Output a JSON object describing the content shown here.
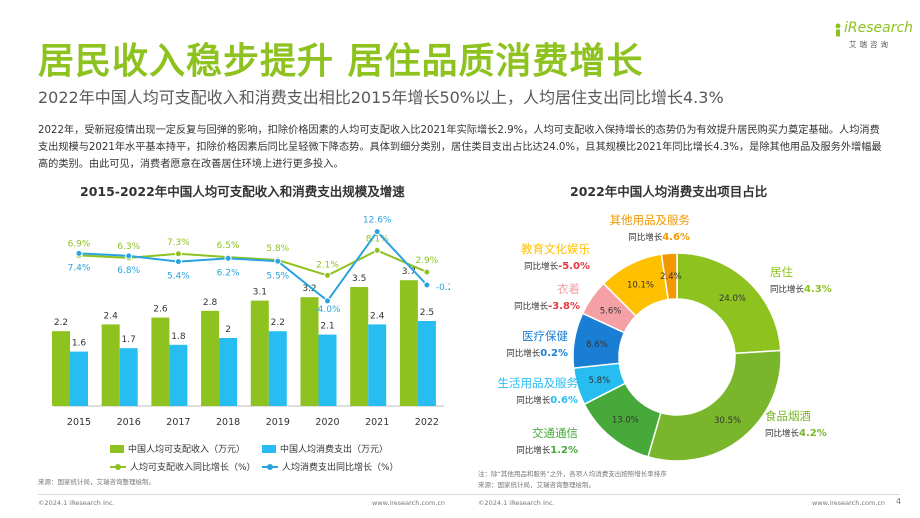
{
  "header": {
    "title": "居民收入稳步提升 居住品质消费增长",
    "subtitle": "2022年中国人均可支配收入和消费支出相比2015年增长50%以上，人均居住支出同比增长4.3%",
    "paragraph": "2022年，受新冠疫情出现一定反复与回弹的影响，扣除价格因素的人均可支配收入比2021年实际增长2.9%，人均可支配收入保持增长的态势仍为有效提升居民购买力奠定基础。人均消费支出规模与2021年水平基本持平，扣除价格因素后同比呈轻微下降态势。具体到细分类别，居住类目支出占比达24.0%，且其规模比2021年同比增长4.3%，是除其他用品及服务外增幅最高的类别。由此可见，消费者愿意在改善居住环境上进行更多投入。",
    "logo_text": "iResearch",
    "logo_cn": "艾瑞咨询"
  },
  "colors": {
    "brand_green": "#8dc21f",
    "bar_blue": "#27bdf0",
    "line_green": "#8dc21f",
    "line_blue": "#2aa3e0",
    "red_text": "#e5373e"
  },
  "chart_data": [
    {
      "type": "bar",
      "title": "2015-2022年中国人均可支配收入和消费支出规模及增速",
      "categories": [
        "2015",
        "2016",
        "2017",
        "2018",
        "2019",
        "2020",
        "2021",
        "2022"
      ],
      "series": [
        {
          "name": "中国人均可支配收入（万元）",
          "kind": "bar",
          "color": "#8dc21f",
          "values": [
            2.2,
            2.4,
            2.6,
            2.8,
            3.1,
            3.2,
            3.5,
            3.7
          ],
          "labels": [
            "2.2",
            "2.4",
            "2.6",
            "2.8",
            "3.1",
            "3.2",
            "3.5",
            "3.7"
          ]
        },
        {
          "name": "中国人均消费支出（万元）",
          "kind": "bar",
          "color": "#27bdf0",
          "values": [
            1.6,
            1.7,
            1.8,
            2.0,
            2.2,
            2.1,
            2.4,
            2.5
          ],
          "labels": [
            "1.6",
            "1.7",
            "1.8",
            "2",
            "2.2",
            "2.1",
            "2.4",
            "2.5"
          ]
        },
        {
          "name": "人均可支配收入同比增长（%）",
          "kind": "line",
          "color": "#8dc21f",
          "values": [
            6.9,
            6.3,
            7.3,
            6.5,
            5.8,
            2.1,
            8.1,
            2.9
          ],
          "labels": [
            "6.9%",
            "6.3%",
            "7.3%",
            "6.5%",
            "5.8%",
            "2.1%",
            "8.1%",
            "2.9%"
          ]
        },
        {
          "name": "人均消费支出同比增长（%）",
          "kind": "line",
          "color": "#2aa3e0",
          "values": [
            7.4,
            6.8,
            5.4,
            6.2,
            5.5,
            -4.0,
            12.6,
            -0.2
          ],
          "labels": [
            "7.4%",
            "6.8%",
            "5.4%",
            "6.2%",
            "5.5%",
            "-4.0%",
            "12.6%",
            "-0.2%"
          ]
        }
      ]
    },
    {
      "type": "pie",
      "title": "2022年中国人均消费支出项目占比",
      "slices": [
        {
          "name": "居住",
          "value": 24.0,
          "label": "24.0%",
          "growth_label": "同比增长",
          "growth": "4.3%",
          "color": "#8dc21f"
        },
        {
          "name": "食品烟酒",
          "value": 30.5,
          "label": "30.5%",
          "growth_label": "同比增长",
          "growth": "4.2%",
          "color": "#7ab62b"
        },
        {
          "name": "交通通信",
          "value": 13.0,
          "label": "13.0%",
          "growth_label": "同比增长",
          "growth": "1.2%",
          "color": "#46a93a"
        },
        {
          "name": "生活用品及服务",
          "value": 5.8,
          "label": "5.8%",
          "growth_label": "同比增长",
          "growth": "0.6%",
          "color": "#27bdf0"
        },
        {
          "name": "医疗保健",
          "value": 8.6,
          "label": "8.6%",
          "growth_label": "同比增长",
          "growth": "0.2%",
          "color": "#1a7fd4"
        },
        {
          "name": "衣着",
          "value": 5.6,
          "label": "5.6%",
          "growth_label": "同比增长",
          "growth": "-3.8%",
          "color": "#f4a0a4"
        },
        {
          "name": "教育文化娱乐",
          "value": 10.1,
          "label": "10.1%",
          "growth_label": "同比增长",
          "growth": "-5.0%",
          "color": "#ffc000"
        },
        {
          "name": "其他用品及服务",
          "value": 2.4,
          "label": "2.4%",
          "growth_label": "同比增长",
          "growth": "4.6%",
          "color": "#f39800"
        }
      ]
    }
  ],
  "footer": {
    "source_left": "来源：国家统计局，艾瑞咨询整理绘制。",
    "note_right": "注：除“其他用品和服务”之外，各项人均消费支出按照增长率排序",
    "source_right": "来源：国家统计局，艾瑞咨询整理绘制。",
    "copyright_left": "©2024.1 iResearch Inc.",
    "url_left": "www.iresearch.com.cn",
    "copyright_right": "©2024.1 iResearch Inc.",
    "url_right": "www.iresearch.com.cn",
    "page": "4"
  }
}
